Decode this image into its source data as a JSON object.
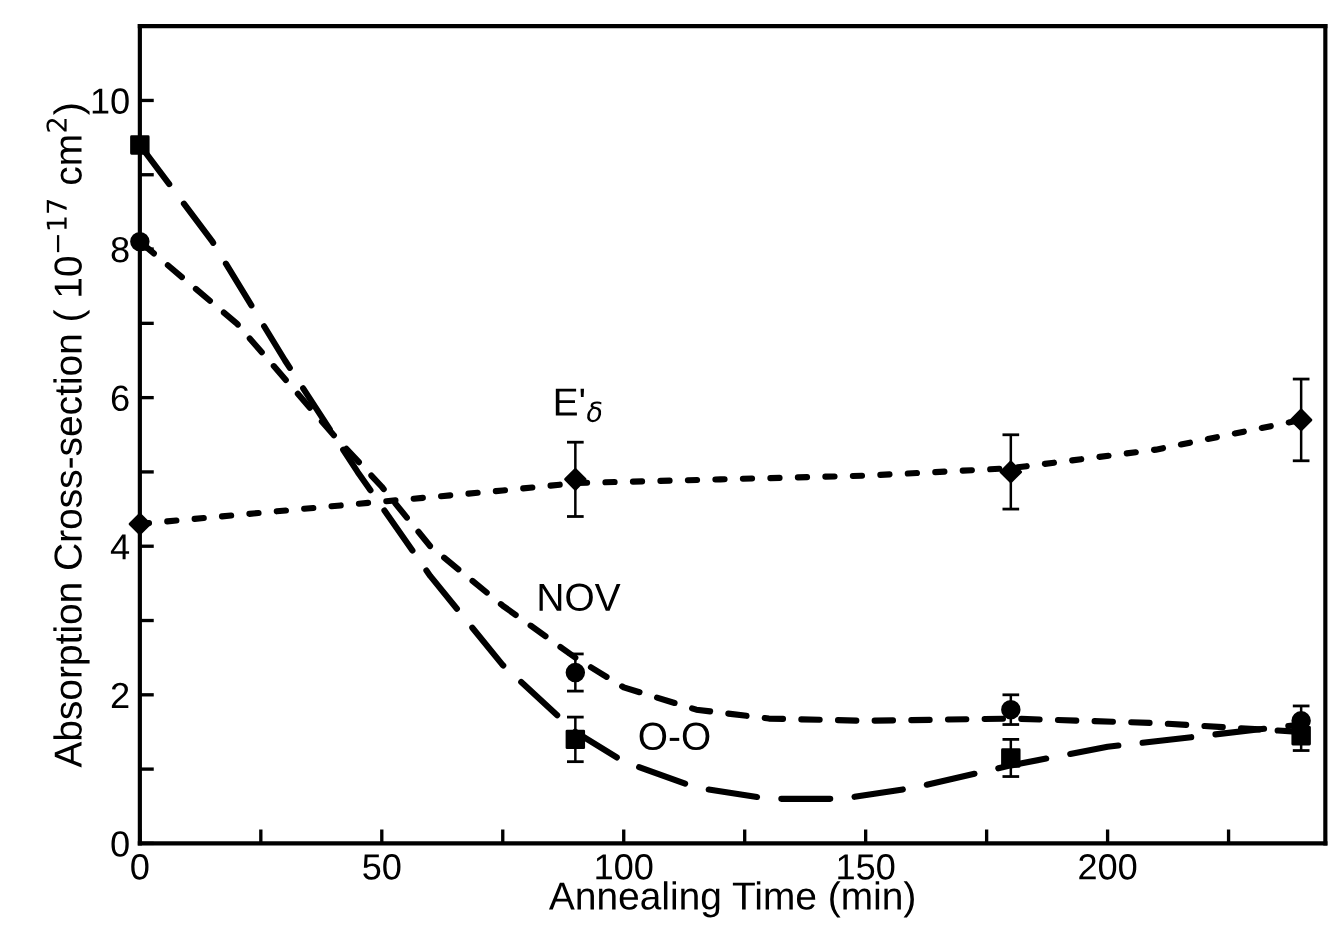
{
  "chart_data": {
    "type": "line",
    "xlabel": "Annealing Time (min)",
    "ylabel": "Absorption Cross-section ( 10$^{−17}$ cm$^{2}$)",
    "xlim": [
      0,
      245
    ],
    "ylim": [
      0,
      11
    ],
    "xticks": [
      0,
      {
        "value": 25,
        "label": null
      },
      50,
      {
        "value": 75,
        "label": null
      },
      100,
      {
        "value": 125,
        "label": null
      },
      150,
      {
        "value": 175,
        "label": null
      },
      200,
      {
        "value": 225,
        "label": null
      }
    ],
    "yticks": [
      0,
      {
        "value": 1,
        "label": null
      },
      2,
      {
        "value": 3,
        "label": null
      },
      4,
      {
        "value": 5,
        "label": null
      },
      6,
      {
        "value": 7,
        "label": null
      },
      8,
      {
        "value": 9,
        "label": null
      },
      10
    ],
    "grid": false,
    "legend": false,
    "series": [
      {
        "name": "E'$_{δ}$",
        "line_style": "dotted",
        "color": "#000000",
        "x": [
          0,
          25,
          50,
          75,
          90,
          120,
          150,
          180,
          210,
          240
        ],
        "values": [
          4.3,
          4.45,
          4.6,
          4.75,
          4.85,
          4.9,
          4.95,
          5.05,
          5.3,
          5.7
        ]
      },
      {
        "name": "NOV",
        "line_style": "dashed",
        "color": "#000000",
        "x": [
          0,
          20,
          40,
          50,
          60,
          75,
          90,
          100,
          115,
          130,
          150,
          180,
          210,
          240
        ],
        "values": [
          8.1,
          7.0,
          5.5,
          4.8,
          4.0,
          3.2,
          2.5,
          2.1,
          1.8,
          1.68,
          1.65,
          1.68,
          1.62,
          1.5
        ]
      },
      {
        "name": "O-O",
        "line_style": "dashed",
        "color": "#000000",
        "x": [
          0,
          15,
          30,
          45,
          60,
          75,
          90,
          100,
          115,
          130,
          145,
          160,
          180,
          200,
          220,
          240
        ],
        "values": [
          9.4,
          8.1,
          6.5,
          5.0,
          3.6,
          2.4,
          1.5,
          1.1,
          0.75,
          0.6,
          0.6,
          0.75,
          1.05,
          1.3,
          1.45,
          1.6
        ]
      },
      {
        "type": "scatter",
        "marker": "diamond",
        "color": "#000000",
        "x": [
          0,
          90,
          180,
          240
        ],
        "values": [
          4.3,
          4.9,
          5.0,
          5.7
        ],
        "errors": [
          null,
          0.5,
          0.5,
          0.55
        ]
      },
      {
        "type": "scatter",
        "marker": "circle",
        "color": "#000000",
        "x": [
          0,
          90,
          180,
          240
        ],
        "values": [
          8.1,
          2.3,
          1.8,
          1.65
        ],
        "errors": [
          null,
          0.25,
          0.2,
          0.2
        ]
      },
      {
        "type": "scatter",
        "marker": "square",
        "color": "#000000",
        "x": [
          0,
          90,
          180,
          240
        ],
        "values": [
          9.4,
          1.4,
          1.15,
          1.45
        ],
        "errors": [
          null,
          0.3,
          0.25,
          0.2
        ]
      }
    ]
  }
}
